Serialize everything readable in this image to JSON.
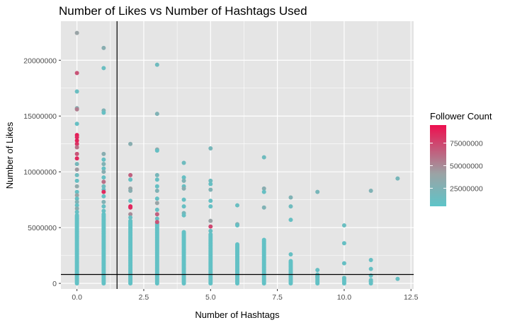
{
  "chart_data": {
    "type": "scatter",
    "title": "Number of Likes vs Number of Hashtags Used",
    "xlabel": "Number of Hashtags",
    "ylabel": "Number of Likes",
    "xlim": [
      -0.6,
      12.6
    ],
    "ylim": [
      -500000,
      23500000
    ],
    "x_ticks": [
      0,
      2.5,
      5,
      7.5,
      10,
      12.5
    ],
    "x_tick_labels": [
      "0.0",
      "2.5",
      "5.0",
      "7.5",
      "10.0",
      "12.5"
    ],
    "y_ticks": [
      0,
      5000000,
      10000000,
      15000000,
      20000000
    ],
    "y_tick_labels": [
      "0",
      "5000000",
      "10000000",
      "15000000",
      "20000000"
    ],
    "grid": true,
    "reference_lines": {
      "vertical_x": 1.5,
      "horizontal_y": 800000
    },
    "colors": {
      "panel": "#e5e5e5",
      "grid": "#ffffff",
      "low": "#5ec4c8",
      "mid": "#9ba3a5",
      "high": "#ee0f4f",
      "reference_line": "#000000"
    },
    "legend": {
      "title": "Follower Count",
      "placement": "right",
      "min": 5000000,
      "max": 95000000,
      "breaks": [
        25000000,
        50000000,
        75000000
      ],
      "break_labels": [
        "25000000",
        "50000000",
        "75000000"
      ]
    },
    "points": [
      {
        "x": 0,
        "y": 22450000,
        "c": 40000000
      },
      {
        "x": 0,
        "y": 18850000,
        "c": 70000000
      },
      {
        "x": 0,
        "y": 17200000,
        "c": 12000000
      },
      {
        "x": 0,
        "y": 15700000,
        "c": 30000000
      },
      {
        "x": 0,
        "y": 15600000,
        "c": 55000000
      },
      {
        "x": 0,
        "y": 14300000,
        "c": 10000000
      },
      {
        "x": 0,
        "y": 13300000,
        "c": 90000000
      },
      {
        "x": 0,
        "y": 13100000,
        "c": 85000000
      },
      {
        "x": 0,
        "y": 12800000,
        "c": 88000000
      },
      {
        "x": 0,
        "y": 12500000,
        "c": 82000000
      },
      {
        "x": 0,
        "y": 12200000,
        "c": 60000000
      },
      {
        "x": 0,
        "y": 11600000,
        "c": 70000000
      },
      {
        "x": 0,
        "y": 11200000,
        "c": 86000000
      },
      {
        "x": 0,
        "y": 10700000,
        "c": 20000000
      },
      {
        "x": 0,
        "y": 10200000,
        "c": 45000000
      },
      {
        "x": 0,
        "y": 9700000,
        "c": 15000000
      },
      {
        "x": 0,
        "y": 9200000,
        "c": 10000000
      },
      {
        "x": 0,
        "y": 8700000,
        "c": 35000000
      },
      {
        "x": 0,
        "y": 8200000,
        "c": 10000000
      },
      {
        "x": 0,
        "y": 7900000,
        "c": 40000000
      },
      {
        "x": 0,
        "y": 7600000,
        "c": 10000000
      },
      {
        "x": 0,
        "y": 7300000,
        "c": 25000000
      },
      {
        "x": 0,
        "y": 7000000,
        "c": 10000000
      },
      {
        "x": 0,
        "y": 6700000,
        "c": 30000000
      },
      {
        "x": 0,
        "y": 6400000,
        "c": 10000000
      },
      {
        "x": 1,
        "y": 21100000,
        "c": 30000000
      },
      {
        "x": 1,
        "y": 19300000,
        "c": 12000000
      },
      {
        "x": 1,
        "y": 15500000,
        "c": 25000000
      },
      {
        "x": 1,
        "y": 15300000,
        "c": 10000000
      },
      {
        "x": 1,
        "y": 11600000,
        "c": 30000000
      },
      {
        "x": 1,
        "y": 11100000,
        "c": 10000000
      },
      {
        "x": 1,
        "y": 10700000,
        "c": 25000000
      },
      {
        "x": 1,
        "y": 10300000,
        "c": 10000000
      },
      {
        "x": 1,
        "y": 10000000,
        "c": 30000000
      },
      {
        "x": 1,
        "y": 9500000,
        "c": 10000000
      },
      {
        "x": 1,
        "y": 9100000,
        "c": 60000000
      },
      {
        "x": 1,
        "y": 8700000,
        "c": 15000000
      },
      {
        "x": 1,
        "y": 8400000,
        "c": 10000000
      },
      {
        "x": 1,
        "y": 8200000,
        "c": 85000000
      },
      {
        "x": 1,
        "y": 7800000,
        "c": 10000000
      },
      {
        "x": 1,
        "y": 7300000,
        "c": 25000000
      },
      {
        "x": 1,
        "y": 6900000,
        "c": 10000000
      },
      {
        "x": 1,
        "y": 6500000,
        "c": 10000000
      },
      {
        "x": 2,
        "y": 12500000,
        "c": 30000000
      },
      {
        "x": 2,
        "y": 9700000,
        "c": 65000000
      },
      {
        "x": 2,
        "y": 9300000,
        "c": 10000000
      },
      {
        "x": 2,
        "y": 8500000,
        "c": 40000000
      },
      {
        "x": 2,
        "y": 8300000,
        "c": 30000000
      },
      {
        "x": 2,
        "y": 7400000,
        "c": 12000000
      },
      {
        "x": 2,
        "y": 6900000,
        "c": 90000000
      },
      {
        "x": 2,
        "y": 6800000,
        "c": 85000000
      },
      {
        "x": 2,
        "y": 6200000,
        "c": 50000000
      },
      {
        "x": 2,
        "y": 5900000,
        "c": 10000000
      },
      {
        "x": 3,
        "y": 19600000,
        "c": 15000000
      },
      {
        "x": 3,
        "y": 15200000,
        "c": 25000000
      },
      {
        "x": 3,
        "y": 12000000,
        "c": 35000000
      },
      {
        "x": 3,
        "y": 11900000,
        "c": 10000000
      },
      {
        "x": 3,
        "y": 9700000,
        "c": 20000000
      },
      {
        "x": 3,
        "y": 9300000,
        "c": 10000000
      },
      {
        "x": 3,
        "y": 8700000,
        "c": 10000000
      },
      {
        "x": 3,
        "y": 8300000,
        "c": 25000000
      },
      {
        "x": 3,
        "y": 7600000,
        "c": 10000000
      },
      {
        "x": 3,
        "y": 7200000,
        "c": 40000000
      },
      {
        "x": 3,
        "y": 6600000,
        "c": 10000000
      },
      {
        "x": 3,
        "y": 6200000,
        "c": 65000000
      },
      {
        "x": 3,
        "y": 5800000,
        "c": 10000000
      },
      {
        "x": 3,
        "y": 5500000,
        "c": 70000000
      },
      {
        "x": 4,
        "y": 10800000,
        "c": 15000000
      },
      {
        "x": 4,
        "y": 9500000,
        "c": 10000000
      },
      {
        "x": 4,
        "y": 9200000,
        "c": 25000000
      },
      {
        "x": 4,
        "y": 8700000,
        "c": 10000000
      },
      {
        "x": 4,
        "y": 8500000,
        "c": 30000000
      },
      {
        "x": 4,
        "y": 7500000,
        "c": 10000000
      },
      {
        "x": 4,
        "y": 6900000,
        "c": 10000000
      },
      {
        "x": 4,
        "y": 6300000,
        "c": 20000000
      },
      {
        "x": 4,
        "y": 6100000,
        "c": 10000000
      },
      {
        "x": 5,
        "y": 12100000,
        "c": 20000000
      },
      {
        "x": 5,
        "y": 9200000,
        "c": 15000000
      },
      {
        "x": 5,
        "y": 8900000,
        "c": 10000000
      },
      {
        "x": 5,
        "y": 8400000,
        "c": 25000000
      },
      {
        "x": 5,
        "y": 7400000,
        "c": 10000000
      },
      {
        "x": 5,
        "y": 6900000,
        "c": 10000000
      },
      {
        "x": 5,
        "y": 5600000,
        "c": 40000000
      },
      {
        "x": 5,
        "y": 5100000,
        "c": 75000000
      },
      {
        "x": 5,
        "y": 4700000,
        "c": 10000000
      },
      {
        "x": 6,
        "y": 7000000,
        "c": 12000000
      },
      {
        "x": 6,
        "y": 5300000,
        "c": 25000000
      },
      {
        "x": 6,
        "y": 5200000,
        "c": 10000000
      },
      {
        "x": 7,
        "y": 11300000,
        "c": 15000000
      },
      {
        "x": 7,
        "y": 8500000,
        "c": 30000000
      },
      {
        "x": 7,
        "y": 8200000,
        "c": 10000000
      },
      {
        "x": 7,
        "y": 6800000,
        "c": 25000000
      },
      {
        "x": 8,
        "y": 7700000,
        "c": 25000000
      },
      {
        "x": 8,
        "y": 6900000,
        "c": 15000000
      },
      {
        "x": 8,
        "y": 5700000,
        "c": 10000000
      },
      {
        "x": 8,
        "y": 2600000,
        "c": 10000000
      },
      {
        "x": 9,
        "y": 8200000,
        "c": 20000000
      },
      {
        "x": 9,
        "y": 1200000,
        "c": 10000000
      },
      {
        "x": 9,
        "y": 600000,
        "c": 10000000
      },
      {
        "x": 10,
        "y": 5200000,
        "c": 12000000
      },
      {
        "x": 10,
        "y": 3600000,
        "c": 10000000
      },
      {
        "x": 10,
        "y": 1800000,
        "c": 10000000
      },
      {
        "x": 10,
        "y": 500000,
        "c": 10000000
      },
      {
        "x": 11,
        "y": 8300000,
        "c": 25000000
      },
      {
        "x": 11,
        "y": 2100000,
        "c": 10000000
      },
      {
        "x": 11,
        "y": 1300000,
        "c": 10000000
      },
      {
        "x": 11,
        "y": 700000,
        "c": 10000000
      },
      {
        "x": 11,
        "y": 200000,
        "c": 10000000
      },
      {
        "x": 12,
        "y": 9400000,
        "c": 20000000
      },
      {
        "x": 12,
        "y": 400000,
        "c": 10000000
      }
    ],
    "dense_columns": [
      {
        "x": 0,
        "top": 6100000,
        "count": 60
      },
      {
        "x": 1,
        "top": 6200000,
        "count": 58
      },
      {
        "x": 2,
        "top": 5600000,
        "count": 52
      },
      {
        "x": 3,
        "top": 5400000,
        "count": 50
      },
      {
        "x": 4,
        "top": 4600000,
        "count": 44
      },
      {
        "x": 5,
        "top": 4400000,
        "count": 40
      },
      {
        "x": 6,
        "top": 3500000,
        "count": 34
      },
      {
        "x": 7,
        "top": 3900000,
        "count": 36
      },
      {
        "x": 8,
        "top": 2000000,
        "count": 20
      },
      {
        "x": 9,
        "top": 800000,
        "count": 8
      },
      {
        "x": 10,
        "top": 400000,
        "count": 4
      },
      {
        "x": 11,
        "top": 300000,
        "count": 3
      }
    ]
  }
}
